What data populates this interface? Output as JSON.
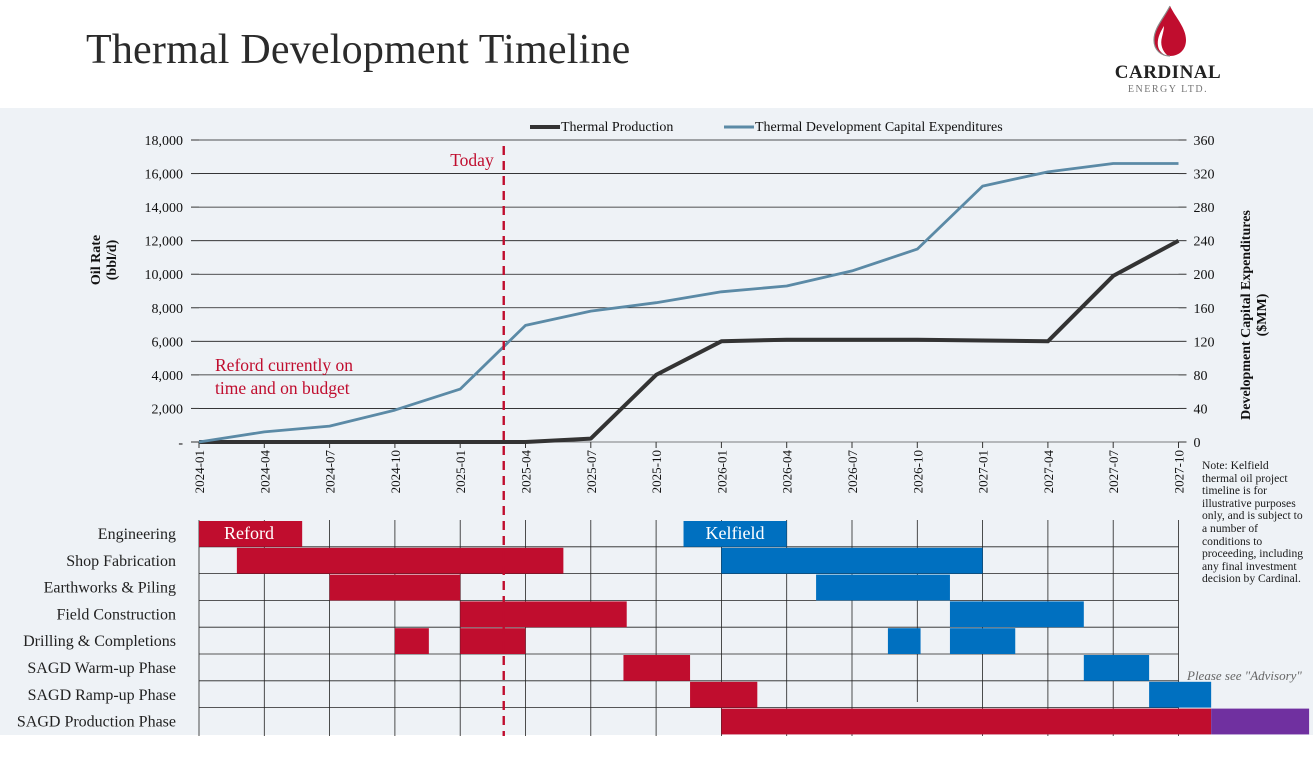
{
  "header": {
    "title": "Thermal Development Timeline",
    "logo_text": "CARDINAL",
    "logo_subtext": "ENERGY LTD."
  },
  "colors": {
    "accent": "#c00d2e",
    "production_line": "#333333",
    "capex_line": "#5b8aa6",
    "reford_bar": "#c00d2e",
    "kelfield_bar": "#0070c0",
    "production_extension": "#7030a0",
    "today_line": "#c00d2e"
  },
  "chart_data": {
    "type": "line",
    "legend_position": "top",
    "x": [
      "2024-01",
      "2024-04",
      "2024-07",
      "2024-10",
      "2025-01",
      "2025-04",
      "2025-07",
      "2025-10",
      "2026-01",
      "2026-04",
      "2026-07",
      "2026-10",
      "2027-01",
      "2027-04",
      "2027-07",
      "2027-10"
    ],
    "y_left": {
      "label": [
        "Oil Rate",
        "(bbl/d)"
      ],
      "ylim": [
        0,
        18000
      ],
      "ticks": [
        "-",
        "2,000",
        "4,000",
        "6,000",
        "8,000",
        "10,000",
        "12,000",
        "14,000",
        "16,000",
        "18,000"
      ]
    },
    "y_right": {
      "label": [
        "Development Capital Expenditures",
        "($MM)"
      ],
      "ylim": [
        0,
        360
      ],
      "ticks": [
        "0",
        "40",
        "80",
        "120",
        "160",
        "200",
        "240",
        "280",
        "320",
        "360"
      ]
    },
    "series": [
      {
        "name": "Thermal Production",
        "axis": "left",
        "points": [
          [
            "2024-01",
            0
          ],
          [
            "2024-04",
            0
          ],
          [
            "2024-07",
            0
          ],
          [
            "2024-10",
            0
          ],
          [
            "2025-01",
            0
          ],
          [
            "2025-04",
            0
          ],
          [
            "2025-07",
            200
          ],
          [
            "2025-10",
            4000
          ],
          [
            "2026-01",
            6000
          ],
          [
            "2026-04",
            6100
          ],
          [
            "2026-07",
            6100
          ],
          [
            "2026-10",
            6100
          ],
          [
            "2027-01",
            6050
          ],
          [
            "2027-04",
            6000
          ],
          [
            "2027-07",
            9900
          ],
          [
            "2027-10",
            12000
          ]
        ]
      },
      {
        "name": "Thermal Development Capital Expenditures",
        "axis": "right",
        "points": [
          [
            "2024-01",
            0
          ],
          [
            "2024-04",
            12
          ],
          [
            "2024-07",
            19
          ],
          [
            "2024-10",
            38
          ],
          [
            "2025-01",
            63
          ],
          [
            "2025-04",
            139
          ],
          [
            "2025-07",
            156
          ],
          [
            "2025-10",
            166
          ],
          [
            "2026-01",
            179
          ],
          [
            "2026-04",
            186
          ],
          [
            "2026-07",
            204
          ],
          [
            "2026-10",
            230
          ],
          [
            "2027-01",
            305
          ],
          [
            "2027-04",
            322
          ],
          [
            "2027-07",
            332
          ],
          [
            "2027-10",
            332
          ]
        ]
      }
    ],
    "today": {
      "label": "Today",
      "date": "2025-03"
    },
    "annotation": [
      "Reford currently on",
      "time and on budget"
    ]
  },
  "gantt": {
    "phases": [
      "Engineering",
      "Shop Fabrication",
      "Earthworks & Piling",
      "Field Construction",
      "Drilling & Completions",
      "SAGD Warm-up Phase",
      "SAGD Ramp-up Phase",
      "SAGD Production Phase"
    ],
    "project_labels": {
      "reford": "Reford",
      "kelfield": "Kelfield"
    },
    "bars": [
      {
        "row": 0,
        "project": "reford",
        "start": 0.0,
        "end": 1.58
      },
      {
        "row": 1,
        "project": "reford",
        "start": 0.58,
        "end": 5.58
      },
      {
        "row": 2,
        "project": "reford",
        "start": 2.0,
        "end": 4.0
      },
      {
        "row": 3,
        "project": "reford",
        "start": 4.0,
        "end": 6.55
      },
      {
        "row": 4,
        "project": "reford",
        "start": 3.0,
        "end": 3.52
      },
      {
        "row": 4,
        "project": "reford",
        "start": 4.0,
        "end": 5.0
      },
      {
        "row": 5,
        "project": "reford",
        "start": 6.5,
        "end": 7.52
      },
      {
        "row": 6,
        "project": "reford",
        "start": 7.52,
        "end": 8.55
      },
      {
        "row": 7,
        "project": "reford",
        "start": 8.0,
        "end": 15.5
      },
      {
        "row": 0,
        "project": "kelfield",
        "start": 7.42,
        "end": 9.0
      },
      {
        "row": 1,
        "project": "kelfield",
        "start": 8.0,
        "end": 12.0
      },
      {
        "row": 2,
        "project": "kelfield",
        "start": 9.45,
        "end": 11.5
      },
      {
        "row": 3,
        "project": "kelfield",
        "start": 11.5,
        "end": 13.55
      },
      {
        "row": 4,
        "project": "kelfield",
        "start": 10.55,
        "end": 11.05
      },
      {
        "row": 4,
        "project": "kelfield",
        "start": 11.5,
        "end": 12.5
      },
      {
        "row": 5,
        "project": "kelfield",
        "start": 13.55,
        "end": 14.55
      },
      {
        "row": 6,
        "project": "kelfield",
        "start": 14.55,
        "end": 15.5
      },
      {
        "row": 7,
        "project": "extension",
        "start": 15.5,
        "end": 17.0
      }
    ]
  },
  "note": "Note: Kelfield thermal oil project timeline is for illustrative purposes only, and is subject to a number of conditions to proceeding, including any final investment decision by Cardinal.",
  "advisory": "Please see \"Advisory\""
}
